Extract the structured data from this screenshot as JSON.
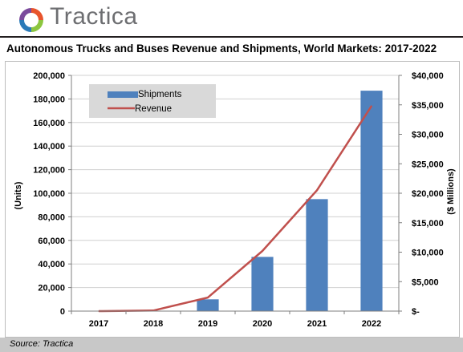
{
  "brand": {
    "name": "Tractica",
    "colors": [
      "#e8542c",
      "#8cc63f",
      "#2a7ab8",
      "#7b4a9c"
    ]
  },
  "title": "Autonomous Trucks and Buses Revenue and Shipments, World Markets: 2017-2022",
  "source": "Source: Tractica",
  "chart_data": {
    "type": "bar",
    "categories": [
      "2017",
      "2018",
      "2019",
      "2020",
      "2021",
      "2022"
    ],
    "series": [
      {
        "name": "Shipments",
        "type": "bar",
        "axis": "left",
        "color": "#4f81bd",
        "values": [
          0,
          0,
          10000,
          46000,
          95000,
          187000
        ]
      },
      {
        "name": "Revenue",
        "type": "line",
        "axis": "right",
        "color": "#c0504d",
        "values": [
          0,
          100,
          2300,
          10200,
          20500,
          34800
        ]
      }
    ],
    "ylabel": "(Units)",
    "y2label": "($ Millions)",
    "ylim": [
      0,
      200000
    ],
    "y2lim": [
      0,
      40000
    ],
    "yticks": [
      "0",
      "20,000",
      "40,000",
      "60,000",
      "80,000",
      "100,000",
      "120,000",
      "140,000",
      "160,000",
      "180,000",
      "200,000"
    ],
    "y2ticks": [
      "$-",
      "$5,000",
      "$10,000",
      "$15,000",
      "$20,000",
      "$25,000",
      "$30,000",
      "$35,000",
      "$40,000"
    ],
    "grid": true,
    "legend": "top-left"
  }
}
